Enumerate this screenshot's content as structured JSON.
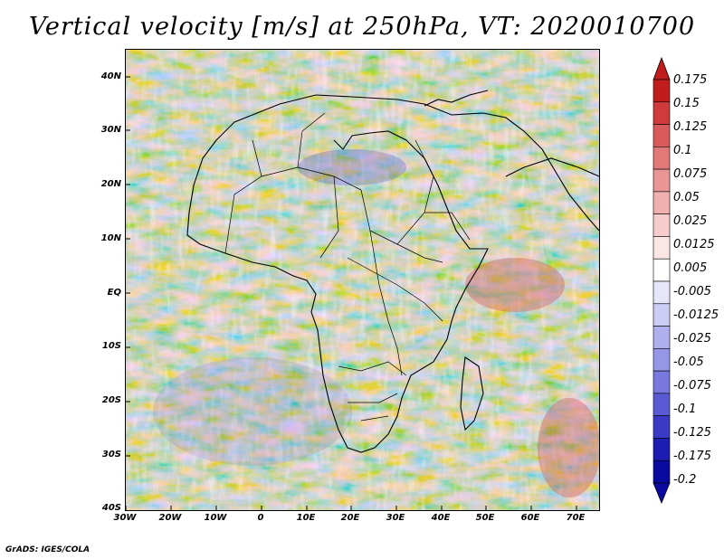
{
  "title": "Vertical velocity [m/s] at 250hPa, VT: 2020010700",
  "map": {
    "lat_labels": [
      "40N",
      "30N",
      "20N",
      "10N",
      "EQ",
      "10S",
      "20S",
      "30S",
      "40S"
    ],
    "lon_labels": [
      "30W",
      "20W",
      "10W",
      "0",
      "10E",
      "20E",
      "30E",
      "40E",
      "50E",
      "60E",
      "70E"
    ]
  },
  "colorbar": {
    "levels": [
      "0.175",
      "0.15",
      "0.125",
      "0.1",
      "0.075",
      "0.05",
      "0.025",
      "0.0125",
      "0.005",
      "-0.005",
      "-0.0125",
      "-0.025",
      "-0.05",
      "-0.075",
      "-0.1",
      "-0.125",
      "-0.175",
      "-0.2"
    ],
    "colors": [
      "#c11d1d",
      "#cf3a3a",
      "#d95a5a",
      "#e27878",
      "#ea9696",
      "#f0b0b0",
      "#f6cccc",
      "#fbe6e6",
      "#ffffff",
      "#e6e6fa",
      "#ccccf4",
      "#b0b0ee",
      "#9696e6",
      "#7878de",
      "#5a5ad4",
      "#3a3ac6",
      "#1d1db4",
      "#0a0aa0"
    ]
  },
  "credit": "GrADS: IGES/COLA"
}
